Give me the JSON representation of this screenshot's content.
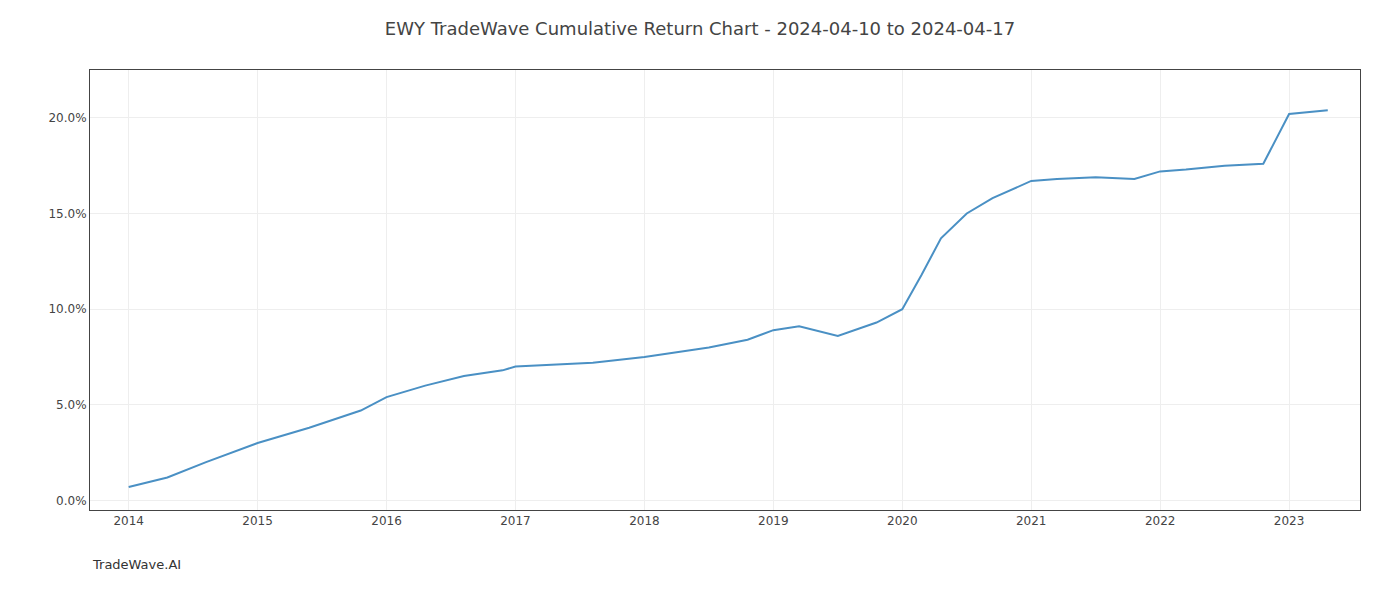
{
  "chart_data": {
    "type": "line",
    "title": "EWY TradeWave Cumulative Return Chart - 2024-04-10 to 2024-04-17",
    "annotations": [
      {
        "text": "TradeWave.AI"
      }
    ],
    "x": [
      2014.0,
      2014.3,
      2014.6,
      2015.0,
      2015.4,
      2015.8,
      2016.0,
      2016.3,
      2016.6,
      2016.9,
      2017.0,
      2017.3,
      2017.6,
      2018.0,
      2018.2,
      2018.5,
      2018.8,
      2019.0,
      2019.2,
      2019.5,
      2019.8,
      2020.0,
      2020.15,
      2020.3,
      2020.5,
      2020.7,
      2021.0,
      2021.2,
      2021.5,
      2021.8,
      2022.0,
      2022.2,
      2022.5,
      2022.8,
      2023.0,
      2023.3
    ],
    "values": [
      0.007,
      0.012,
      0.02,
      0.03,
      0.038,
      0.047,
      0.054,
      0.06,
      0.065,
      0.068,
      0.07,
      0.071,
      0.072,
      0.075,
      0.077,
      0.08,
      0.084,
      0.089,
      0.091,
      0.086,
      0.093,
      0.1,
      0.118,
      0.137,
      0.15,
      0.158,
      0.167,
      0.168,
      0.169,
      0.168,
      0.172,
      0.173,
      0.175,
      0.176,
      0.202,
      0.204
    ],
    "color": "#4a90c4",
    "xlim": [
      2013.7,
      2023.55
    ],
    "ylim": [
      -0.005,
      0.225
    ],
    "xticks": [
      2014,
      2015,
      2016,
      2017,
      2018,
      2019,
      2020,
      2021,
      2022,
      2023
    ],
    "yticks": [
      {
        "value": 0.0,
        "label": "0.0%"
      },
      {
        "value": 0.05,
        "label": "5.0%"
      },
      {
        "value": 0.1,
        "label": "10.0%"
      },
      {
        "value": 0.15,
        "label": "15.0%"
      },
      {
        "value": 0.2,
        "label": "20.0%"
      }
    ],
    "grid": true
  }
}
